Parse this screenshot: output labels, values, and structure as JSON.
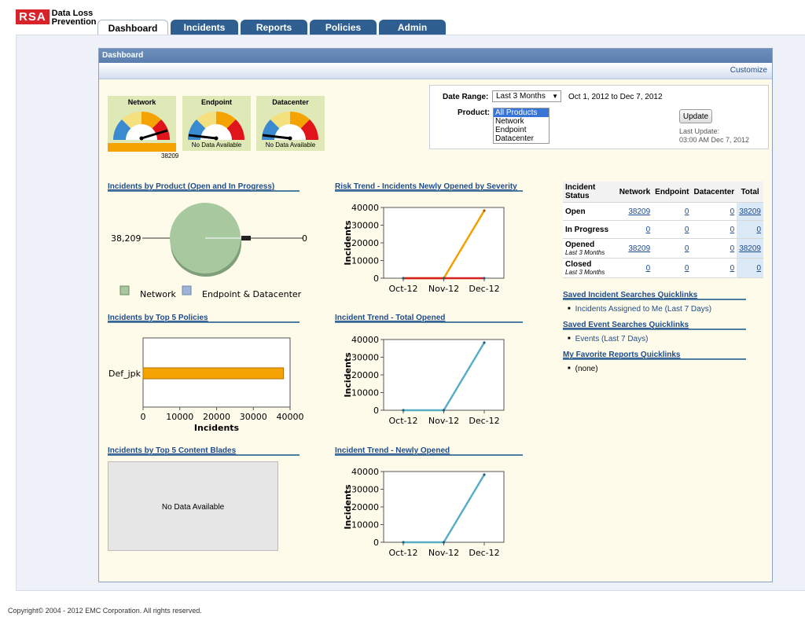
{
  "app": {
    "logo": "RSA",
    "product_line1": "Data Loss",
    "product_line2": "Prevention"
  },
  "tabs": [
    {
      "label": "Dashboard",
      "active": true
    },
    {
      "label": "Incidents"
    },
    {
      "label": "Reports"
    },
    {
      "label": "Policies"
    },
    {
      "label": "Admin"
    }
  ],
  "panel": {
    "title": "Dashboard",
    "customize": "Customize"
  },
  "gauges": [
    {
      "name": "Network",
      "value_label": "38209",
      "message": ""
    },
    {
      "name": "Endpoint",
      "message": "No Data Available"
    },
    {
      "name": "Datacenter",
      "message": "No Data Available"
    }
  ],
  "filters": {
    "date_range_label": "Date Range:",
    "date_range_value": "Last 3 Months",
    "date_range_text": "Oct 1, 2012 to Dec 7, 2012",
    "product_label": "Product:",
    "product_options": [
      "All Products",
      "Network",
      "Endpoint",
      "Datacenter"
    ],
    "update_label": "Update",
    "last_update_label": "Last Update:",
    "last_update_value": "03:00 AM  Dec 7, 2012"
  },
  "sections": {
    "by_product": "Incidents by Product (Open and In Progress)",
    "risk_trend": "Risk Trend - Incidents Newly Opened by Severity",
    "top_policies": "Incidents by Top 5 Policies",
    "trend_total": "Incident Trend - Total Opened",
    "top_blades": "Incidents by Top 5 Content Blades",
    "trend_new": "Incident Trend - Newly Opened",
    "no_data": "No Data Available"
  },
  "chart_data": [
    {
      "type": "pie",
      "labels": [
        "Network",
        "Endpoint & Datacenter"
      ],
      "values": [
        38209,
        0
      ],
      "value_labels": [
        "38,209",
        "0"
      ],
      "colors": [
        "#a8c8a0",
        "#9db4d6"
      ],
      "legend": "bottom"
    },
    {
      "type": "line",
      "categories": [
        "Oct-12",
        "Nov-12",
        "Dec-12"
      ],
      "series": [
        {
          "values": [
            0,
            0,
            38209
          ],
          "color": "#f0a000"
        },
        {
          "values": [
            0,
            0,
            0
          ],
          "color": "#d81f1f"
        }
      ],
      "ylabel": "Incidents",
      "ylim": [
        0,
        40000
      ],
      "yticks": [
        0,
        10000,
        20000,
        30000,
        40000
      ]
    },
    {
      "type": "bar",
      "orientation": "horizontal",
      "categories": [
        "Def_jpk"
      ],
      "values": [
        38209
      ],
      "color": "#f5a300",
      "xlabel": "Incidents",
      "xlim": [
        0,
        40000
      ],
      "xticks": [
        0,
        10000,
        20000,
        30000,
        40000
      ]
    },
    {
      "type": "line",
      "categories": [
        "Oct-12",
        "Nov-12",
        "Dec-12"
      ],
      "series": [
        {
          "values": [
            0,
            0,
            38209
          ],
          "color": "#5aaec8"
        }
      ],
      "ylabel": "Incidents",
      "ylim": [
        0,
        40000
      ],
      "yticks": [
        0,
        10000,
        20000,
        30000,
        40000
      ]
    },
    {
      "type": "line",
      "categories": [
        "Oct-12",
        "Nov-12",
        "Dec-12"
      ],
      "series": [
        {
          "values": [
            0,
            0,
            38209
          ],
          "color": "#5aaec8"
        }
      ],
      "ylabel": "Incidents",
      "ylim": [
        0,
        40000
      ],
      "yticks": [
        0,
        10000,
        20000,
        30000,
        40000
      ]
    }
  ],
  "status_table": {
    "headers": [
      "Incident Status",
      "Network",
      "Endpoint",
      "Datacenter",
      "Total"
    ],
    "rows": [
      {
        "label": "Open",
        "sub": "",
        "values": [
          "38209",
          "0",
          "0",
          "38209"
        ]
      },
      {
        "label": "In Progress",
        "sub": "",
        "values": [
          "0",
          "0",
          "0",
          "0"
        ]
      },
      {
        "label": "Opened",
        "sub": "Last 3 Months",
        "values": [
          "38209",
          "0",
          "0",
          "38209"
        ]
      },
      {
        "label": "Closed",
        "sub": "Last 3 Months",
        "values": [
          "0",
          "0",
          "0",
          "0"
        ]
      }
    ]
  },
  "quicklinks": {
    "incident_title": "Saved Incident Searches Quicklinks",
    "incident_items": [
      "Incidents Assigned to Me (Last 7 Days)"
    ],
    "event_title": "Saved Event Searches Quicklinks",
    "event_items": [
      "Events (Last 7 Days)"
    ],
    "reports_title": "My Favorite Reports Quicklinks",
    "reports_items": [
      "(none)"
    ]
  },
  "footer": {
    "copyright": "Copyright© 2004 - 2012  EMC Corporation. All rights reserved."
  }
}
